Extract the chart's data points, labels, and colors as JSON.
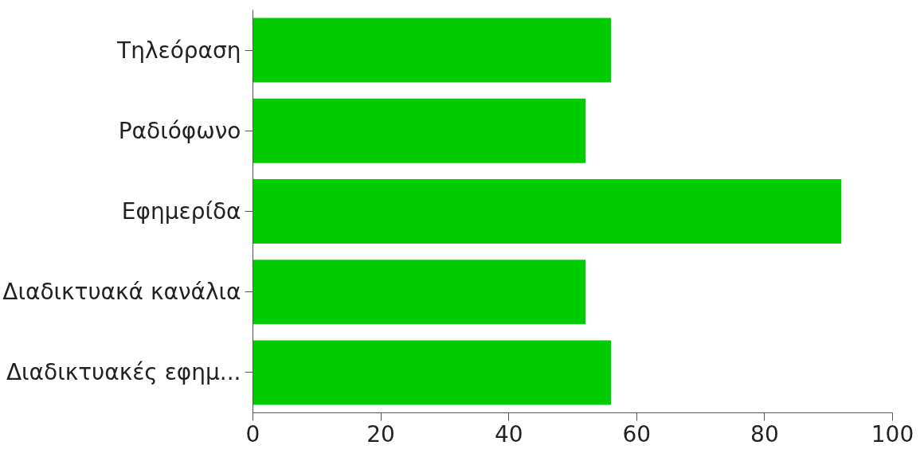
{
  "chart_data": {
    "type": "bar",
    "orientation": "horizontal",
    "categories": [
      "Τηλεόραση",
      "Ραδιόφωνο",
      "Εφημερίδα",
      "Διαδικτυακά κανάλια",
      "Διαδικτυακές εφημ..."
    ],
    "values": [
      56,
      52,
      92,
      52,
      56
    ],
    "color": "#00cc00",
    "xlim": [
      0,
      100
    ],
    "xticks": [
      0,
      20,
      40,
      60,
      80,
      100
    ],
    "grid": false
  }
}
